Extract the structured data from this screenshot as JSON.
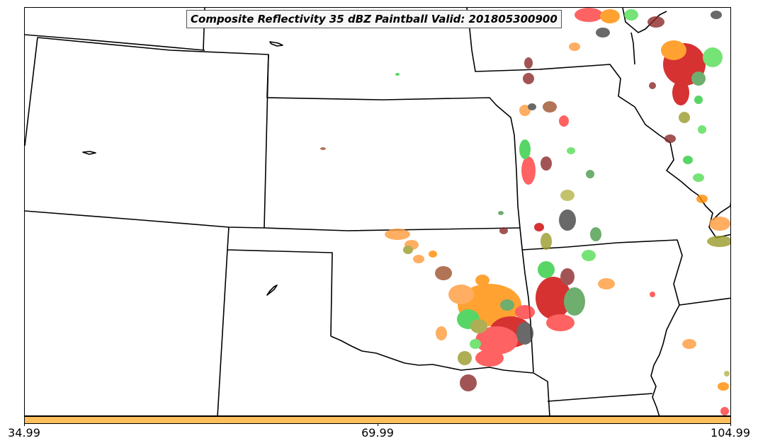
{
  "title": "Composite Reflectivity 35 dBZ Paintball Valid: 201805300900",
  "colorbar": {
    "color": "#fdbf5c",
    "tick_labels": [
      "34.99",
      "69.99",
      "104.99"
    ]
  },
  "chart_data": {
    "type": "map",
    "title": "Composite Reflectivity 35 dBZ Paintball Valid: 201805300900",
    "colorbar_ticks": [
      34.99,
      69.99,
      104.99
    ],
    "member_colors": [
      "#ff3b3b",
      "#cc0000",
      "#ff9a3c",
      "#ff8c00",
      "#2ecc40",
      "#55dd55",
      "#4a9a4a",
      "#9a9a2a",
      "#b5b54a",
      "#8b2a2a",
      "#a0522d",
      "#444444"
    ]
  }
}
